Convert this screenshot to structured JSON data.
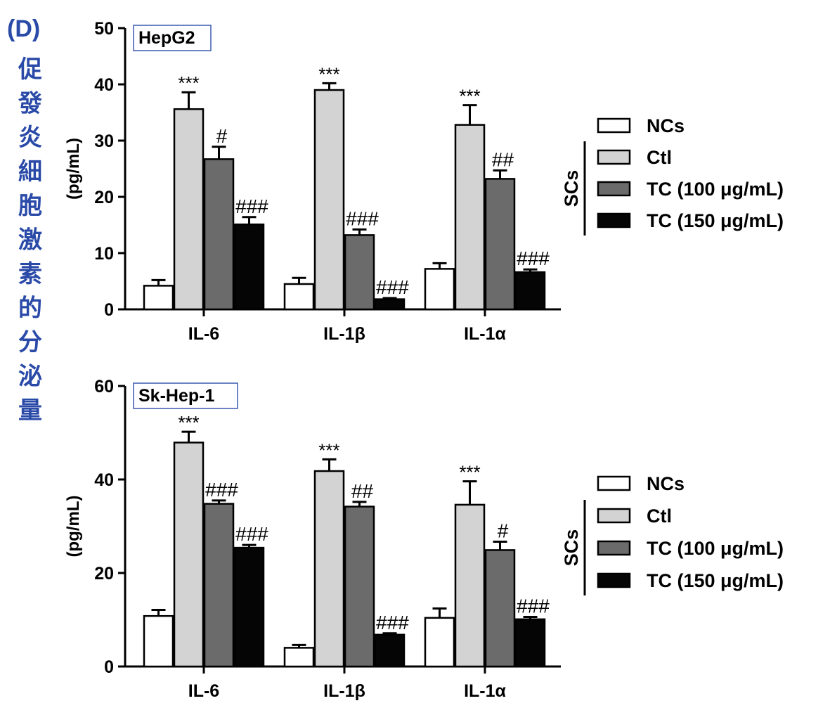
{
  "panel_label": "(D)",
  "side_title": "促發炎細胞激素的分泌量",
  "colors": {
    "side_text": "#2a4aa8",
    "box_border": "#3a5ab0",
    "ncs": "#ffffff",
    "ctl": "#d3d3d3",
    "tc100": "#6b6b6b",
    "tc150": "#050505"
  },
  "chart_data": [
    {
      "type": "bar",
      "title": "HepG2",
      "ylabel": "(pg/mL)",
      "ylim": [
        0,
        50
      ],
      "yticks": [
        0,
        10,
        20,
        30,
        40,
        50
      ],
      "categories": [
        "IL-6",
        "IL-1β",
        "IL-1α"
      ],
      "series": [
        {
          "name": "NCs",
          "values": [
            4.2,
            4.5,
            7.2
          ],
          "errors": [
            1.0,
            1.1,
            1.0
          ],
          "annotations": [
            "",
            "",
            ""
          ]
        },
        {
          "name": "Ctl",
          "values": [
            35.6,
            39.0,
            32.8
          ],
          "errors": [
            3.0,
            1.2,
            3.5
          ],
          "annotations": [
            "***",
            "***",
            "***"
          ]
        },
        {
          "name": "TC (100 μg/mL)",
          "values": [
            26.7,
            13.2,
            23.2
          ],
          "errors": [
            2.2,
            1.0,
            1.5
          ],
          "annotations": [
            "#",
            "###",
            "##"
          ]
        },
        {
          "name": "TC (150 μg/mL)",
          "values": [
            15.1,
            1.8,
            6.6
          ],
          "errors": [
            1.3,
            0.2,
            0.5
          ],
          "annotations": [
            "###",
            "###",
            "###"
          ]
        }
      ],
      "legend": {
        "placement": "right",
        "group_label": "SCs"
      }
    },
    {
      "type": "bar",
      "title": "Sk-Hep-1",
      "ylabel": "(pg/mL)",
      "ylim": [
        0,
        60
      ],
      "yticks": [
        0,
        20,
        40,
        60
      ],
      "categories": [
        "IL-6",
        "IL-1β",
        "IL-1α"
      ],
      "series": [
        {
          "name": "NCs",
          "values": [
            10.8,
            4.0,
            10.4
          ],
          "errors": [
            1.3,
            0.6,
            2.0
          ],
          "annotations": [
            "",
            "",
            ""
          ]
        },
        {
          "name": "Ctl",
          "values": [
            47.9,
            41.8,
            34.6
          ],
          "errors": [
            2.3,
            2.5,
            5.0
          ],
          "annotations": [
            "***",
            "***",
            "***"
          ]
        },
        {
          "name": "TC (100 μg/mL)",
          "values": [
            34.8,
            34.2,
            24.9
          ],
          "errors": [
            0.7,
            1.0,
            1.8
          ],
          "annotations": [
            "###",
            "##",
            "#"
          ]
        },
        {
          "name": "TC (150 μg/mL)",
          "values": [
            25.4,
            6.8,
            10.1
          ],
          "errors": [
            0.6,
            0.3,
            0.5
          ],
          "annotations": [
            "###",
            "###",
            "###"
          ]
        }
      ],
      "legend": {
        "placement": "right",
        "group_label": "SCs"
      }
    }
  ]
}
